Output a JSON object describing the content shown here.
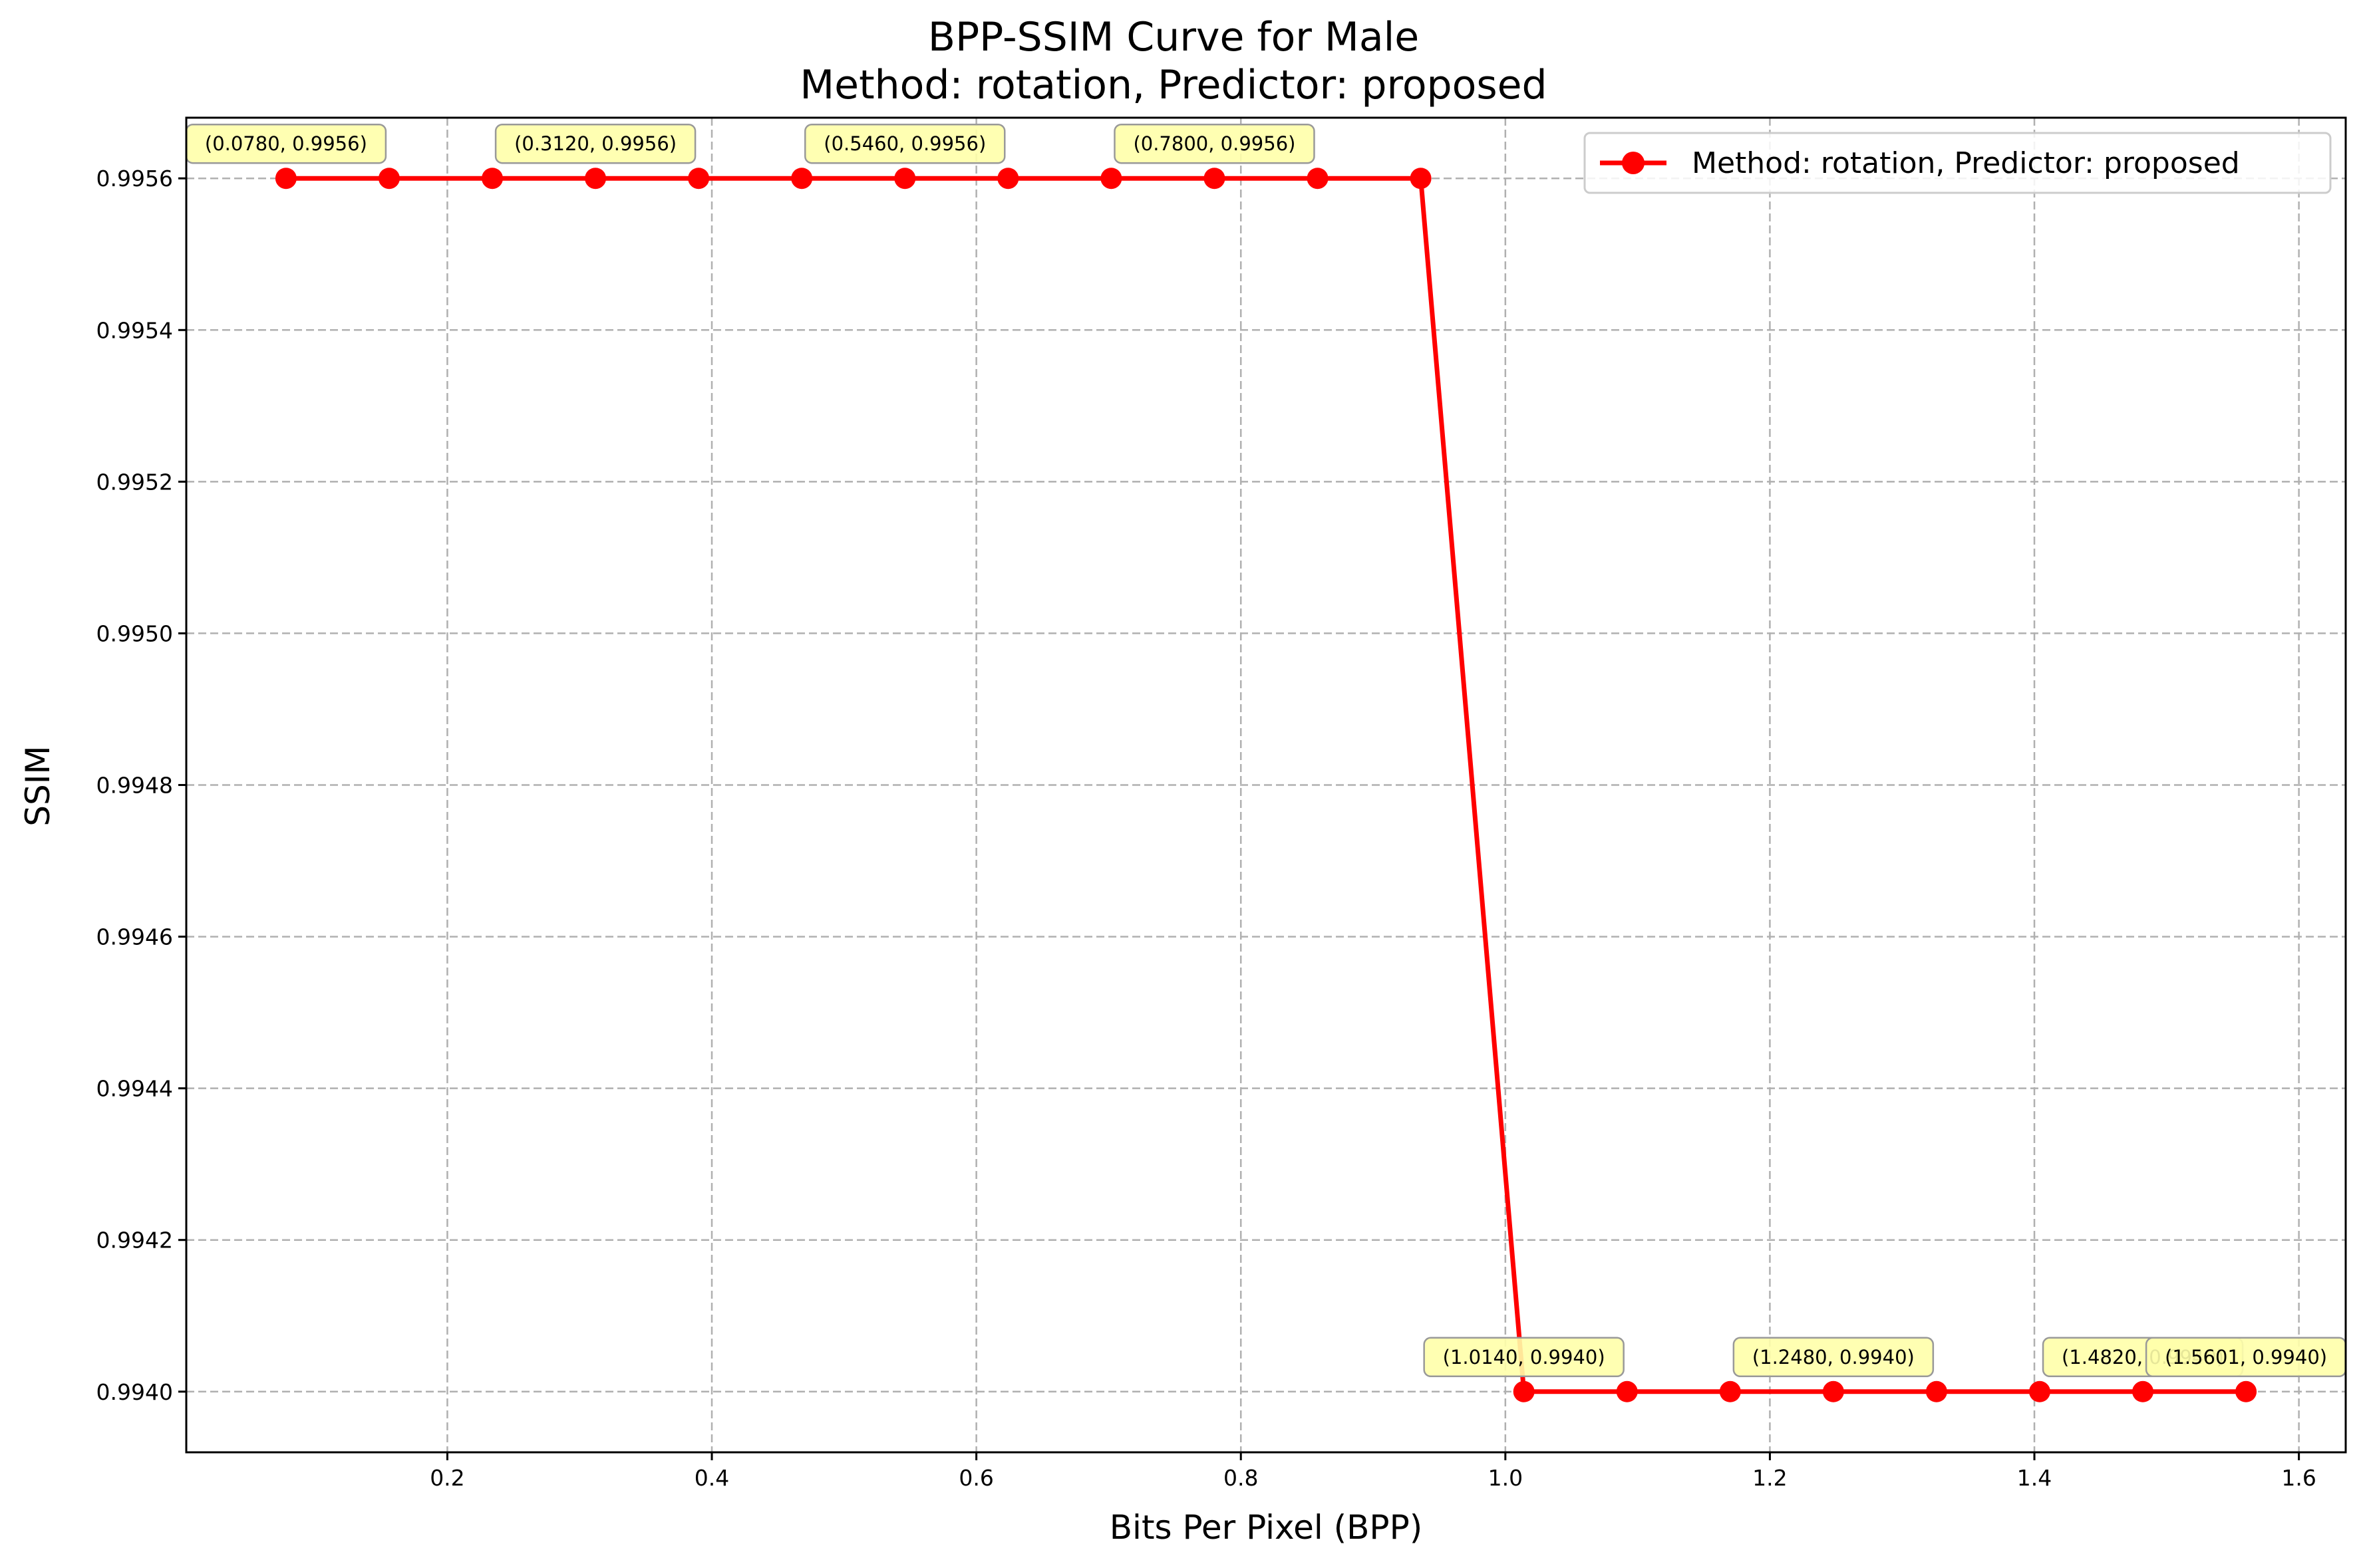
{
  "chart_data": {
    "type": "line",
    "title": "BPP-SSIM Curve for Male",
    "subtitle": "Method: rotation, Predictor: proposed",
    "xlabel": "Bits Per Pixel (BPP)",
    "ylabel": "SSIM",
    "xlim": [
      0.0026,
      1.6354
    ],
    "ylim": [
      0.99392,
      0.99568
    ],
    "xticks": [
      "0.2",
      "0.4",
      "0.6",
      "0.8",
      "1.0",
      "1.2",
      "1.4",
      "1.6"
    ],
    "xtick_values": [
      0.2,
      0.4,
      0.6,
      0.8,
      1.0,
      1.2,
      1.4,
      1.6
    ],
    "yticks": [
      "0.9940",
      "0.9942",
      "0.9944",
      "0.9946",
      "0.9948",
      "0.9950",
      "0.9952",
      "0.9954",
      "0.9956"
    ],
    "ytick_values": [
      0.994,
      0.9942,
      0.9944,
      0.9946,
      0.9948,
      0.995,
      0.9952,
      0.9954,
      0.9956
    ],
    "grid": true,
    "legend_position": "top-right",
    "series": [
      {
        "name": "Method: rotation, Predictor: proposed",
        "color": "#ff0000",
        "marker": "circle",
        "x": [
          0.078,
          0.156,
          0.234,
          0.312,
          0.39,
          0.468,
          0.546,
          0.624,
          0.702,
          0.78,
          0.858,
          0.936,
          1.014,
          1.092,
          1.17,
          1.248,
          1.326,
          1.404,
          1.482,
          1.56
        ],
        "y": [
          0.9956,
          0.9956,
          0.9956,
          0.9956,
          0.9956,
          0.9956,
          0.9956,
          0.9956,
          0.9956,
          0.9956,
          0.9956,
          0.9956,
          0.994,
          0.994,
          0.994,
          0.994,
          0.994,
          0.994,
          0.994,
          0.994
        ]
      }
    ],
    "annotations": [
      {
        "x": 0.078,
        "y": 0.9956,
        "text": "(0.0780, 0.9956)"
      },
      {
        "x": 0.312,
        "y": 0.9956,
        "text": "(0.3120, 0.9956)"
      },
      {
        "x": 0.546,
        "y": 0.9956,
        "text": "(0.5460, 0.9956)"
      },
      {
        "x": 0.78,
        "y": 0.9956,
        "text": "(0.7800, 0.9956)"
      },
      {
        "x": 1.014,
        "y": 0.994,
        "text": "(1.0140, 0.9940)"
      },
      {
        "x": 1.248,
        "y": 0.994,
        "text": "(1.2480, 0.9940)"
      },
      {
        "x": 1.482,
        "y": 0.994,
        "text": "(1.4820, 0.9940)"
      },
      {
        "x": 1.56,
        "y": 0.994,
        "text": "(1.5601, 0.9940)"
      }
    ],
    "colors": {
      "line": "#ff0000",
      "annotation_fill": "#ffffaa",
      "annotation_border": "#999999",
      "grid": "#b0b0b0"
    }
  }
}
